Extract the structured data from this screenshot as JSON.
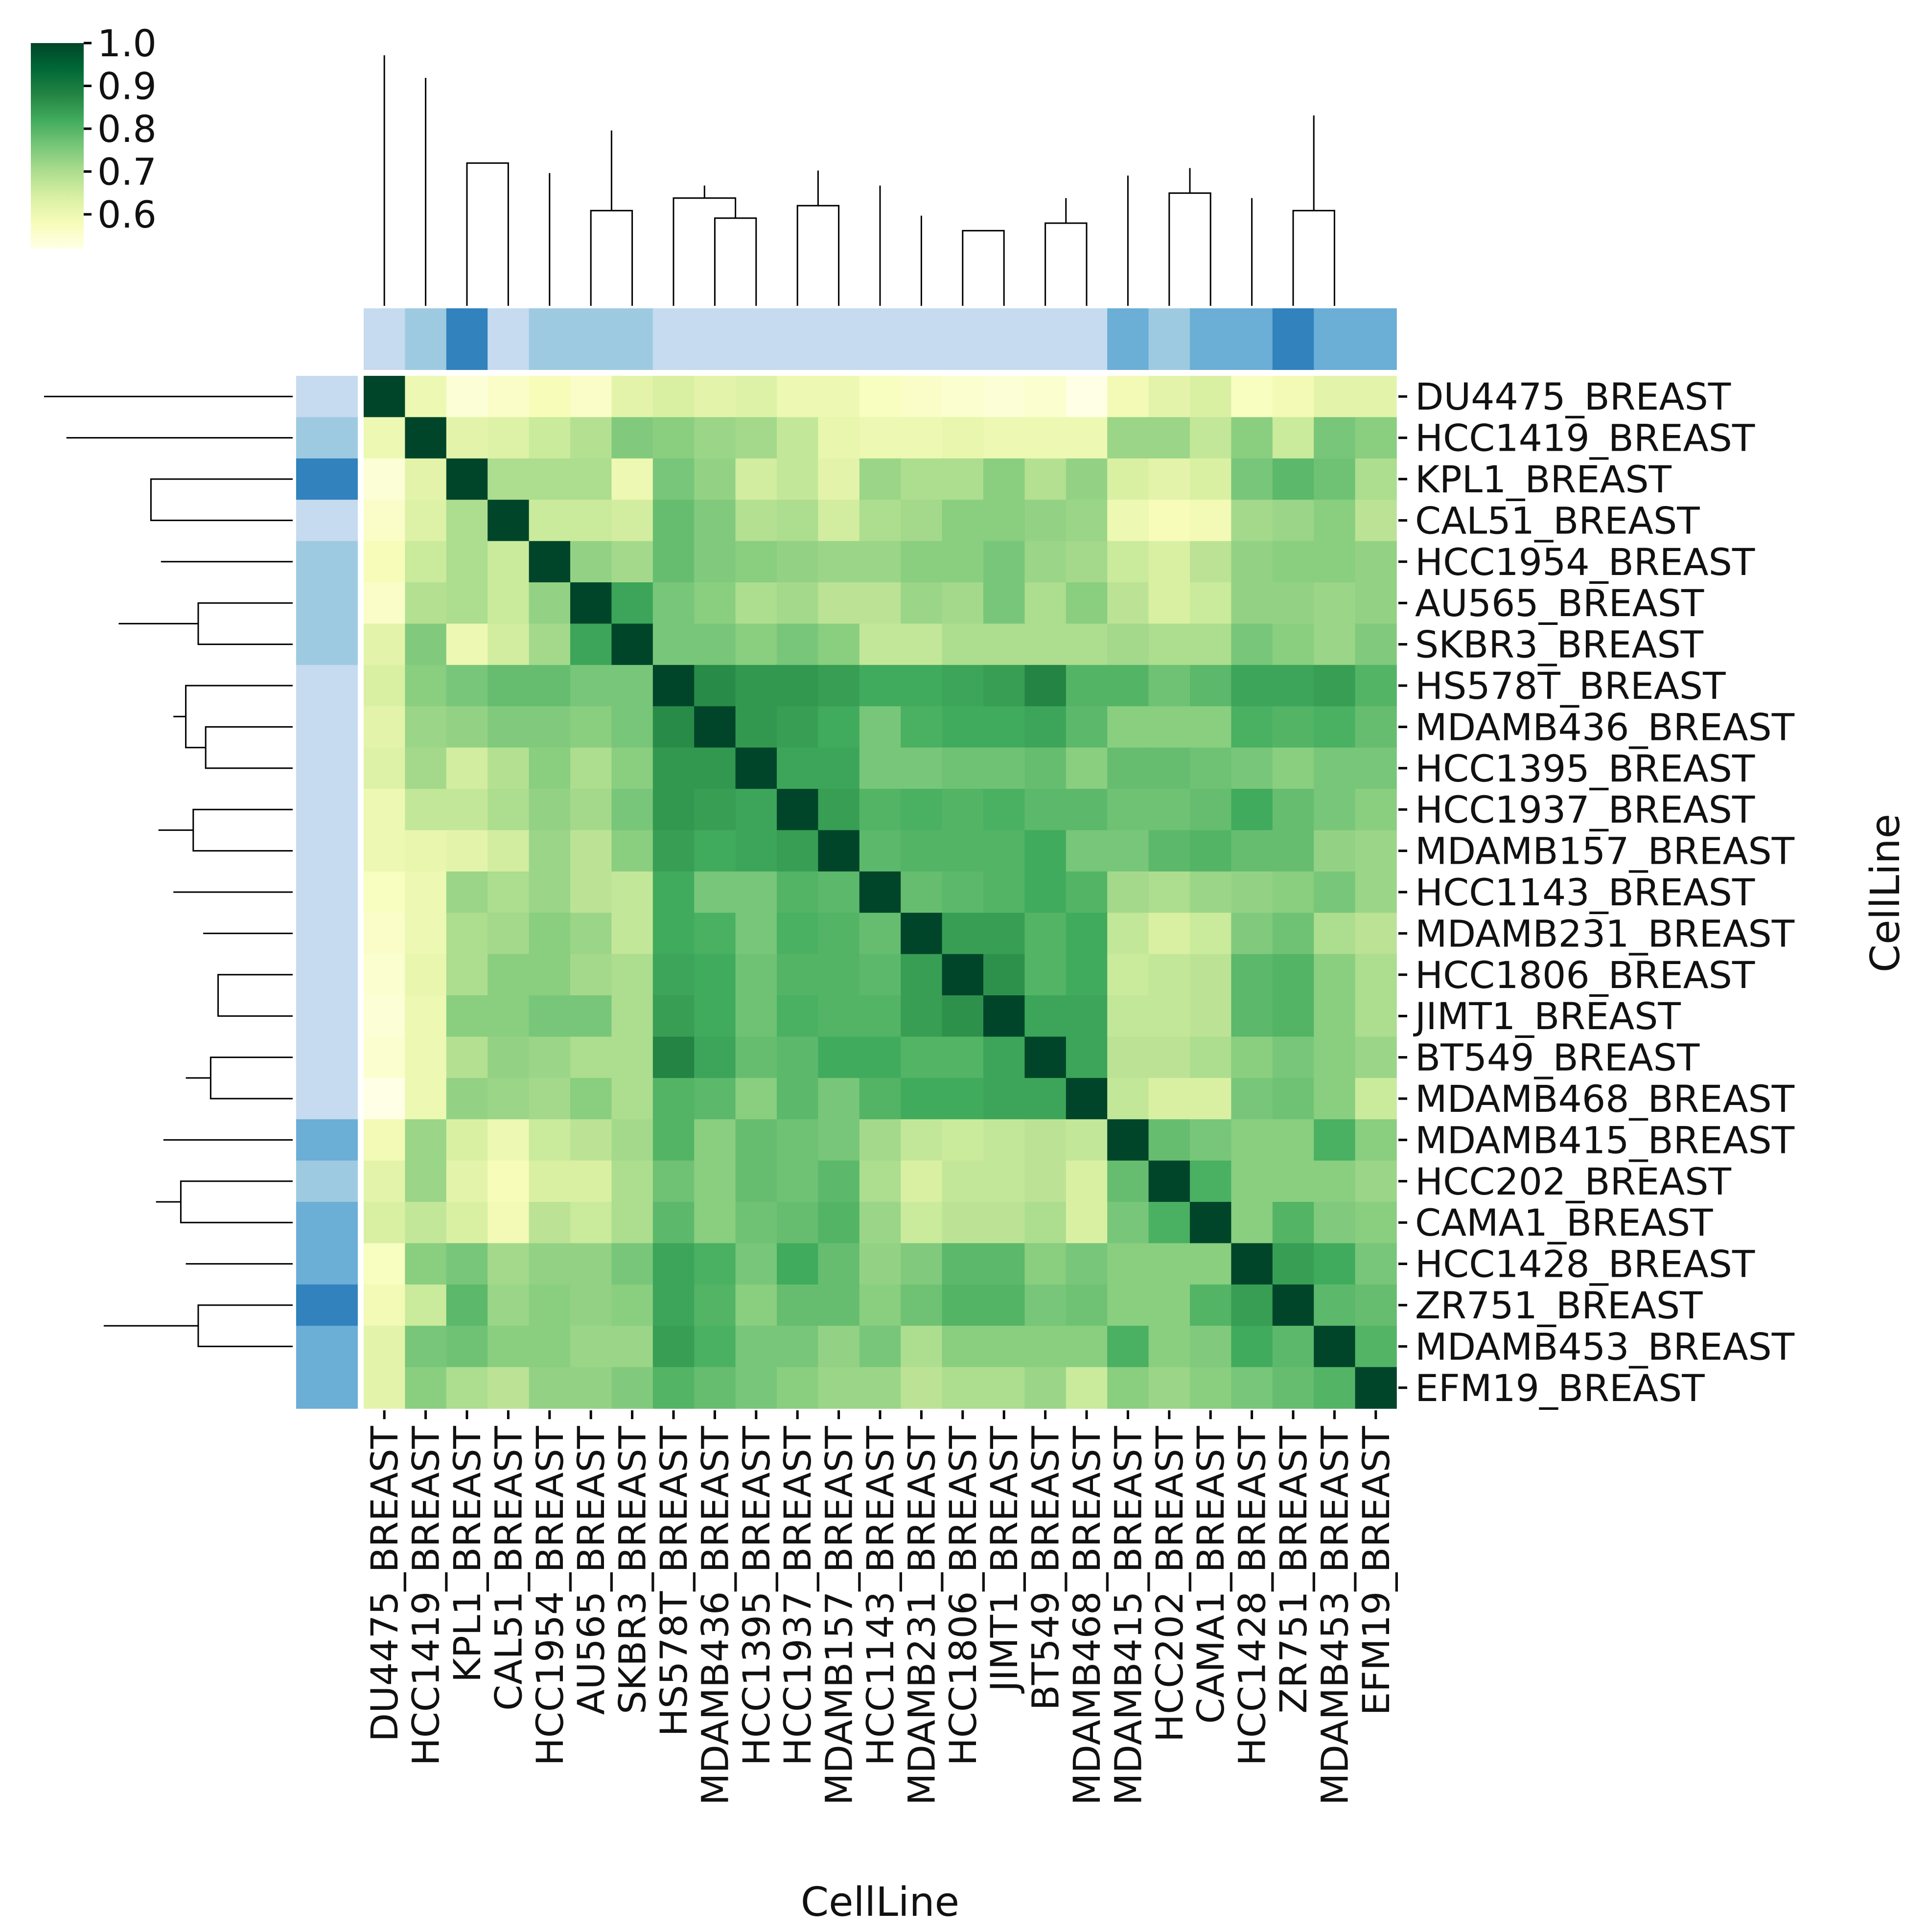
{
  "chart_data": {
    "type": "heatmap",
    "subtype": "clustermap",
    "title": "",
    "xlabel": "CellLine",
    "ylabel": "CellLine",
    "colormap": "YlGn",
    "vmin": 0.52,
    "vmax": 1.0,
    "colorbar": {
      "ticks": [
        0.6,
        0.7,
        0.8,
        0.9,
        1.0
      ],
      "tick_labels": [
        "0.6",
        "0.7",
        "0.8",
        "0.9",
        "1.0"
      ],
      "placement": "top-left"
    },
    "labels": [
      "DU4475_BREAST",
      "HCC1419_BREAST",
      "KPL1_BREAST",
      "CAL51_BREAST",
      "HCC1954_BREAST",
      "AU565_BREAST",
      "SKBR3_BREAST",
      "HS578T_BREAST",
      "MDAMB436_BREAST",
      "HCC1395_BREAST",
      "HCC1937_BREAST",
      "MDAMB157_BREAST",
      "HCC1143_BREAST",
      "MDAMB231_BREAST",
      "HCC1806_BREAST",
      "JIMT1_BREAST",
      "BT549_BREAST",
      "MDAMB468_BREAST",
      "MDAMB415_BREAST",
      "HCC202_BREAST",
      "CAMA1_BREAST",
      "HCC1428_BREAST",
      "ZR751_BREAST",
      "MDAMB453_BREAST",
      "EFM19_BREAST"
    ],
    "group_colors": [
      "#c6dbef",
      "#9ecae1",
      "#3182bd",
      "#c6dbef",
      "#9ecae1",
      "#9ecae1",
      "#9ecae1",
      "#c6dbef",
      "#c6dbef",
      "#c6dbef",
      "#c6dbef",
      "#c6dbef",
      "#c6dbef",
      "#c6dbef",
      "#c6dbef",
      "#c6dbef",
      "#c6dbef",
      "#c6dbef",
      "#6baed6",
      "#9ecae1",
      "#6baed6",
      "#6baed6",
      "#3182bd",
      "#6baed6",
      "#6baed6"
    ],
    "dendrogram_merges": [
      [
        14,
        15
      ],
      [
        13,
        26
      ],
      [
        16,
        17
      ],
      [
        27,
        28
      ],
      [
        12,
        29
      ],
      [
        10,
        11
      ],
      [
        8,
        9
      ],
      [
        7,
        31
      ],
      [
        32,
        33
      ],
      [
        30,
        34
      ],
      [
        5,
        6
      ],
      [
        4,
        36
      ],
      [
        2,
        3
      ],
      [
        38,
        37
      ],
      [
        35,
        39
      ],
      [
        22,
        23
      ],
      [
        21,
        41
      ],
      [
        19,
        20
      ],
      [
        18,
        43
      ],
      [
        42,
        44
      ],
      [
        40,
        45
      ],
      [
        1,
        46
      ],
      [
        0,
        47
      ]
    ],
    "dendrogram_heights": [
      0.3,
      0.36,
      0.33,
      0.43,
      0.48,
      0.4,
      0.35,
      0.43,
      0.48,
      0.54,
      0.38,
      0.53,
      0.57,
      0.62,
      0.7,
      0.38,
      0.43,
      0.45,
      0.52,
      0.55,
      0.76,
      0.91,
      1.0
    ],
    "values": [
      [
        1.0,
        0.6,
        0.54,
        0.56,
        0.58,
        0.56,
        0.62,
        0.64,
        0.62,
        0.63,
        0.6,
        0.6,
        0.57,
        0.56,
        0.55,
        0.54,
        0.55,
        0.52,
        0.59,
        0.62,
        0.64,
        0.57,
        0.59,
        0.62,
        0.62
      ],
      [
        0.6,
        1.0,
        0.62,
        0.63,
        0.66,
        0.69,
        0.75,
        0.74,
        0.72,
        0.71,
        0.67,
        0.61,
        0.6,
        0.6,
        0.61,
        0.6,
        0.6,
        0.6,
        0.72,
        0.72,
        0.67,
        0.74,
        0.66,
        0.76,
        0.74
      ],
      [
        0.54,
        0.62,
        1.0,
        0.7,
        0.7,
        0.7,
        0.6,
        0.76,
        0.73,
        0.65,
        0.67,
        0.62,
        0.72,
        0.7,
        0.7,
        0.74,
        0.69,
        0.73,
        0.64,
        0.62,
        0.64,
        0.76,
        0.79,
        0.77,
        0.7
      ],
      [
        0.56,
        0.63,
        0.7,
        1.0,
        0.66,
        0.66,
        0.65,
        0.78,
        0.75,
        0.69,
        0.7,
        0.65,
        0.7,
        0.71,
        0.74,
        0.74,
        0.73,
        0.72,
        0.6,
        0.58,
        0.59,
        0.71,
        0.72,
        0.74,
        0.68
      ],
      [
        0.58,
        0.66,
        0.7,
        0.66,
        1.0,
        0.73,
        0.71,
        0.78,
        0.75,
        0.74,
        0.73,
        0.72,
        0.72,
        0.74,
        0.74,
        0.76,
        0.72,
        0.71,
        0.66,
        0.64,
        0.68,
        0.73,
        0.74,
        0.74,
        0.73
      ],
      [
        0.56,
        0.69,
        0.7,
        0.66,
        0.73,
        1.0,
        0.83,
        0.76,
        0.74,
        0.7,
        0.71,
        0.68,
        0.68,
        0.72,
        0.71,
        0.76,
        0.7,
        0.74,
        0.68,
        0.64,
        0.66,
        0.73,
        0.73,
        0.72,
        0.73
      ],
      [
        0.62,
        0.75,
        0.6,
        0.65,
        0.71,
        0.83,
        1.0,
        0.76,
        0.76,
        0.74,
        0.76,
        0.74,
        0.67,
        0.67,
        0.7,
        0.7,
        0.7,
        0.7,
        0.71,
        0.7,
        0.7,
        0.76,
        0.74,
        0.72,
        0.75
      ],
      [
        0.64,
        0.74,
        0.76,
        0.78,
        0.78,
        0.76,
        0.76,
        1.0,
        0.87,
        0.85,
        0.85,
        0.84,
        0.82,
        0.82,
        0.83,
        0.84,
        0.88,
        0.8,
        0.8,
        0.77,
        0.79,
        0.83,
        0.83,
        0.84,
        0.8
      ],
      [
        0.62,
        0.72,
        0.73,
        0.75,
        0.75,
        0.74,
        0.76,
        0.87,
        1.0,
        0.85,
        0.84,
        0.82,
        0.76,
        0.81,
        0.82,
        0.82,
        0.83,
        0.79,
        0.74,
        0.74,
        0.74,
        0.81,
        0.8,
        0.81,
        0.78
      ],
      [
        0.63,
        0.71,
        0.65,
        0.69,
        0.74,
        0.7,
        0.74,
        0.85,
        0.85,
        1.0,
        0.83,
        0.83,
        0.76,
        0.76,
        0.77,
        0.77,
        0.78,
        0.74,
        0.78,
        0.78,
        0.77,
        0.76,
        0.74,
        0.76,
        0.76
      ],
      [
        0.6,
        0.67,
        0.67,
        0.7,
        0.73,
        0.71,
        0.76,
        0.85,
        0.84,
        0.83,
        1.0,
        0.84,
        0.8,
        0.81,
        0.8,
        0.81,
        0.79,
        0.79,
        0.77,
        0.77,
        0.78,
        0.82,
        0.78,
        0.76,
        0.74
      ],
      [
        0.6,
        0.61,
        0.62,
        0.65,
        0.72,
        0.68,
        0.74,
        0.84,
        0.82,
        0.83,
        0.84,
        1.0,
        0.79,
        0.8,
        0.8,
        0.8,
        0.82,
        0.76,
        0.76,
        0.79,
        0.8,
        0.78,
        0.78,
        0.73,
        0.72
      ],
      [
        0.57,
        0.6,
        0.72,
        0.7,
        0.72,
        0.68,
        0.67,
        0.82,
        0.76,
        0.76,
        0.8,
        0.79,
        1.0,
        0.78,
        0.79,
        0.8,
        0.82,
        0.8,
        0.71,
        0.7,
        0.72,
        0.73,
        0.74,
        0.76,
        0.72
      ],
      [
        0.56,
        0.6,
        0.7,
        0.71,
        0.74,
        0.72,
        0.67,
        0.82,
        0.81,
        0.76,
        0.81,
        0.8,
        0.78,
        1.0,
        0.84,
        0.84,
        0.8,
        0.82,
        0.67,
        0.64,
        0.66,
        0.75,
        0.77,
        0.7,
        0.68
      ],
      [
        0.55,
        0.61,
        0.7,
        0.74,
        0.74,
        0.71,
        0.7,
        0.83,
        0.82,
        0.77,
        0.8,
        0.8,
        0.79,
        0.84,
        1.0,
        0.86,
        0.8,
        0.82,
        0.66,
        0.67,
        0.68,
        0.79,
        0.8,
        0.74,
        0.7
      ],
      [
        0.54,
        0.6,
        0.74,
        0.74,
        0.76,
        0.76,
        0.7,
        0.84,
        0.82,
        0.77,
        0.81,
        0.8,
        0.8,
        0.84,
        0.86,
        1.0,
        0.83,
        0.83,
        0.67,
        0.67,
        0.68,
        0.79,
        0.8,
        0.74,
        0.7
      ],
      [
        0.55,
        0.6,
        0.69,
        0.73,
        0.72,
        0.7,
        0.7,
        0.88,
        0.83,
        0.78,
        0.79,
        0.82,
        0.82,
        0.8,
        0.8,
        0.83,
        1.0,
        0.83,
        0.68,
        0.68,
        0.7,
        0.74,
        0.76,
        0.74,
        0.72
      ],
      [
        0.52,
        0.6,
        0.73,
        0.72,
        0.71,
        0.74,
        0.7,
        0.8,
        0.79,
        0.74,
        0.79,
        0.76,
        0.8,
        0.82,
        0.82,
        0.83,
        0.83,
        1.0,
        0.67,
        0.64,
        0.64,
        0.76,
        0.77,
        0.74,
        0.66
      ],
      [
        0.59,
        0.72,
        0.64,
        0.6,
        0.66,
        0.68,
        0.71,
        0.8,
        0.74,
        0.78,
        0.77,
        0.76,
        0.71,
        0.67,
        0.66,
        0.67,
        0.68,
        0.67,
        1.0,
        0.78,
        0.76,
        0.74,
        0.74,
        0.81,
        0.74
      ],
      [
        0.62,
        0.72,
        0.62,
        0.58,
        0.64,
        0.64,
        0.7,
        0.77,
        0.74,
        0.78,
        0.77,
        0.79,
        0.7,
        0.64,
        0.67,
        0.67,
        0.68,
        0.64,
        0.78,
        1.0,
        0.81,
        0.74,
        0.74,
        0.74,
        0.72
      ],
      [
        0.64,
        0.67,
        0.64,
        0.59,
        0.68,
        0.66,
        0.7,
        0.79,
        0.74,
        0.77,
        0.78,
        0.8,
        0.72,
        0.66,
        0.68,
        0.68,
        0.7,
        0.64,
        0.76,
        0.81,
        1.0,
        0.74,
        0.8,
        0.75,
        0.74
      ],
      [
        0.57,
        0.74,
        0.76,
        0.71,
        0.73,
        0.73,
        0.76,
        0.83,
        0.81,
        0.76,
        0.82,
        0.78,
        0.73,
        0.75,
        0.79,
        0.79,
        0.74,
        0.76,
        0.74,
        0.74,
        0.74,
        1.0,
        0.84,
        0.82,
        0.76
      ],
      [
        0.59,
        0.66,
        0.79,
        0.72,
        0.74,
        0.73,
        0.74,
        0.83,
        0.8,
        0.74,
        0.78,
        0.78,
        0.74,
        0.77,
        0.8,
        0.8,
        0.76,
        0.77,
        0.74,
        0.74,
        0.8,
        0.84,
        1.0,
        0.79,
        0.78
      ],
      [
        0.62,
        0.76,
        0.77,
        0.74,
        0.74,
        0.72,
        0.72,
        0.84,
        0.81,
        0.76,
        0.76,
        0.73,
        0.76,
        0.7,
        0.74,
        0.74,
        0.74,
        0.74,
        0.81,
        0.74,
        0.75,
        0.82,
        0.79,
        1.0,
        0.8
      ],
      [
        0.62,
        0.74,
        0.7,
        0.68,
        0.73,
        0.73,
        0.75,
        0.8,
        0.78,
        0.76,
        0.74,
        0.72,
        0.72,
        0.68,
        0.7,
        0.7,
        0.72,
        0.66,
        0.74,
        0.72,
        0.74,
        0.76,
        0.78,
        0.8,
        1.0
      ]
    ]
  }
}
